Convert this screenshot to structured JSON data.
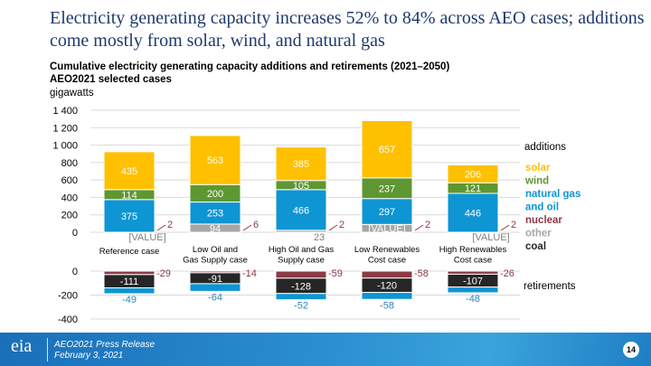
{
  "title": "Electricity generating capacity increases 52% to 84% across AEO cases; additions come mostly from solar, wind, and natural gas",
  "subtitle_line1": "Cumulative electricity generating capacity additions and retirements (2021–2050)",
  "subtitle_line2": "AEO2021 selected cases",
  "unit": "gigawatts",
  "footer": {
    "line1": "AEO2021 Press Release",
    "line2": "February 3, 2021",
    "logo_text": "eia",
    "page": "14"
  },
  "colors": {
    "solar": "#FFC000",
    "wind": "#5E9732",
    "natural_gas": "#0E95D3",
    "nuclear": "#8B3A46",
    "other": "#A6A6A6",
    "coal": "#262626"
  },
  "chart_data": [
    {
      "type": "bar",
      "stacked": true,
      "name": "additions",
      "categories": [
        "Reference case",
        "Low Oil and Gas Supply case",
        "High Oil and Gas Supply case",
        "Low Renewables Cost case",
        "High Renewables Cost case"
      ],
      "ylim": [
        0,
        1400
      ],
      "yticks": [
        "0",
        "200",
        "400",
        "600",
        "800",
        "1 000",
        "1 200",
        "1 400"
      ],
      "grid": true,
      "series": [
        {
          "name": "other",
          "values": [
            0,
            94,
            23,
            90,
            0
          ],
          "labels": [
            "[VALUE]",
            "94",
            "23",
            "[VALUE]",
            "[VALUE]"
          ]
        },
        {
          "name": "natural gas and oil",
          "values": [
            375,
            253,
            466,
            297,
            446
          ]
        },
        {
          "name": "wind",
          "values": [
            114,
            200,
            105,
            237,
            121
          ]
        },
        {
          "name": "solar",
          "values": [
            435,
            563,
            385,
            657,
            206
          ]
        },
        {
          "name": "nuclear",
          "values": [
            2,
            6,
            2,
            2,
            2
          ]
        }
      ]
    },
    {
      "type": "bar",
      "stacked": true,
      "name": "retirements",
      "categories": [
        "Reference case",
        "Low Oil and Gas Supply case",
        "High Oil and Gas Supply case",
        "Low Renewables Cost case",
        "High Renewables Cost case"
      ],
      "ylim": [
        -400,
        0
      ],
      "yticks": [
        "0",
        "-200",
        "-400"
      ],
      "grid": true,
      "series": [
        {
          "name": "nuclear",
          "values": [
            -29,
            -14,
            -59,
            -58,
            -26
          ]
        },
        {
          "name": "coal",
          "values": [
            -111,
            -91,
            -128,
            -120,
            -107
          ]
        },
        {
          "name": "natural gas and oil",
          "values": [
            -49,
            -64,
            -52,
            -58,
            -48
          ]
        }
      ]
    }
  ],
  "legend": {
    "additions_label": "additions",
    "retirements_label": "retirements",
    "items": [
      {
        "label": "solar",
        "key": "solar"
      },
      {
        "label": "wind",
        "key": "wind"
      },
      {
        "label": "natural gas",
        "key": "natural_gas"
      },
      {
        "label": "and oil",
        "key": "natural_gas"
      },
      {
        "label": "nuclear",
        "key": "nuclear"
      },
      {
        "label": "other",
        "key": "other"
      },
      {
        "label": "coal",
        "key": "coal"
      }
    ]
  }
}
